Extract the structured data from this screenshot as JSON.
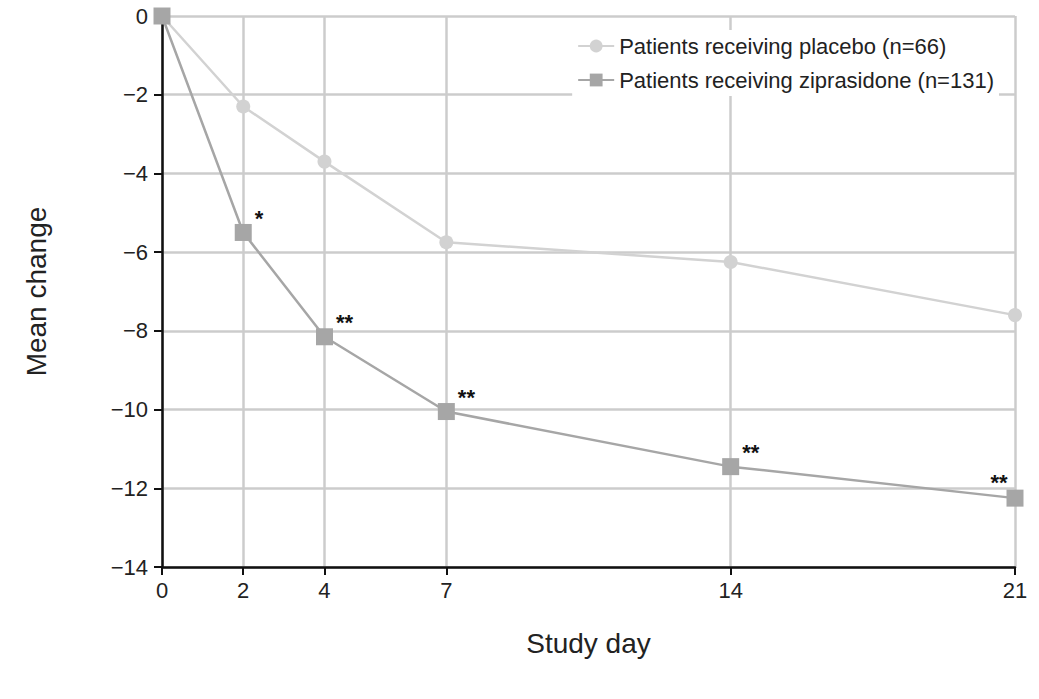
{
  "chart_data": {
    "type": "line",
    "x_label": "Study day",
    "y_label": "Mean change",
    "xlim": [
      0,
      21
    ],
    "xticks": [
      0,
      2,
      4,
      7,
      14,
      21
    ],
    "ylim": [
      -14,
      0
    ],
    "yticks": [
      -14,
      -12,
      -10,
      -8,
      -6,
      -4,
      -2,
      0
    ],
    "grid": true,
    "legend": "upper right",
    "x": [
      0,
      2,
      4,
      7,
      14,
      21
    ],
    "series": [
      {
        "name": "Patients receiving placebo (n=66)",
        "color": "#d2d2d2",
        "marker": "circle",
        "line_style": "solid",
        "values": [
          0,
          -2.3,
          -3.7,
          -5.75,
          -6.25,
          -7.6
        ]
      },
      {
        "name": "Patients receiving ziprasidone (n=131)",
        "color": "#a6a6a6",
        "marker": "square",
        "line_style": "solid",
        "values": [
          0,
          -5.5,
          -8.15,
          -10.05,
          -11.45,
          -12.25
        ],
        "point_labels": [
          null,
          "*",
          "**",
          "**",
          "**",
          "**"
        ]
      }
    ]
  }
}
